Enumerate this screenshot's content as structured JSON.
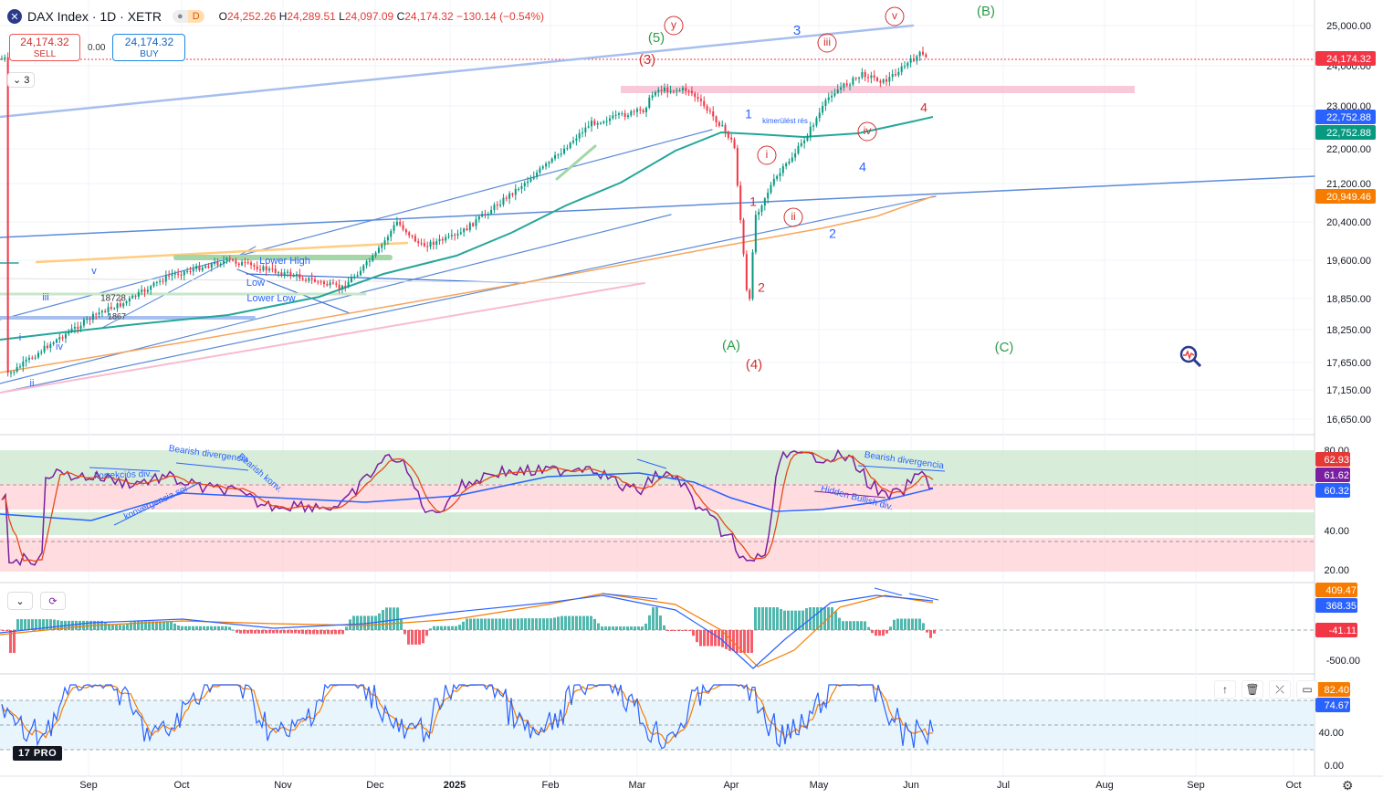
{
  "header": {
    "title": "DAX Index · 1D · XETR",
    "delay_badge": "D",
    "open_label": "O",
    "open": "24,252.26",
    "high_label": "H",
    "high": "24,289.51",
    "low_label": "L",
    "low": "24,097.09",
    "close_label": "C",
    "close": "24,174.32",
    "change": "−130.14 (−0.54%)"
  },
  "trade": {
    "sell_price": "24,174.32",
    "sell_label": "SELL",
    "spread": "0.00",
    "buy_price": "24,174.32",
    "buy_label": "BUY"
  },
  "indicator_count": "3",
  "icons": [
    "index-logo-icon",
    "chevron-down-icon",
    "refresh-icon",
    "arrow-up-icon",
    "trash-icon",
    "collapse-icon",
    "maximize-icon",
    "settings-icon",
    "magnifier-chart-icon"
  ],
  "colors": {
    "up": "#089981",
    "down": "#f23645",
    "ma_green": "#26a69a",
    "ma_orange": "#f7a55b",
    "trend_blue": "#5b8bd9",
    "rsi_purple": "#7b1fa2",
    "rsi_red": "#e64a19",
    "rsi_blue": "#2962ff"
  },
  "chart_data": [
    {
      "type": "line",
      "title": "DAX Index · 1D · XETR",
      "x_axis_labels": [
        "Sep",
        "Oct",
        "Nov",
        "Dec",
        "2025",
        "Feb",
        "Mar",
        "Apr",
        "May",
        "Jun",
        "Jul",
        "Aug",
        "Sep",
        "Oct"
      ],
      "y_tick_labels": [
        "25,000.00",
        "24,000.00",
        "23,000.00",
        "22,000.00",
        "21,200.00",
        "20,400.00",
        "19,600.00",
        "18,850.00",
        "18,250.00",
        "17,650.00",
        "17,150.00",
        "16,650.00"
      ],
      "y_ticks": [
        25000,
        24000,
        23000,
        22000,
        21200,
        20400,
        19600,
        18850,
        18250,
        17650,
        17150,
        16650
      ],
      "ylim": [
        16400,
        25500
      ],
      "price_key_points": [
        {
          "t": "Aug 6",
          "v": 17400
        },
        {
          "t": "Aug 20",
          "v": 18000
        },
        {
          "t": "Sep 5",
          "v": 18600
        },
        {
          "t": "Sep 12",
          "v": 18750
        },
        {
          "t": "Sep 27",
          "v": 19300
        },
        {
          "t": "Oct 15",
          "v": 19600
        },
        {
          "t": "Oct 25",
          "v": 19450
        },
        {
          "t": "Nov 5",
          "v": 19300
        },
        {
          "t": "Nov 20",
          "v": 19050
        },
        {
          "t": "Dec 1",
          "v": 19700
        },
        {
          "t": "Dec 10",
          "v": 20400
        },
        {
          "t": "Dec 20",
          "v": 19900
        },
        {
          "t": "Jan 3",
          "v": 20100
        },
        {
          "t": "Jan 20",
          "v": 21000
        },
        {
          "t": "Feb 1",
          "v": 21700
        },
        {
          "t": "Feb 14",
          "v": 22600
        },
        {
          "t": "Mar 3",
          "v": 22900
        },
        {
          "t": "Mar 7",
          "v": 23400
        },
        {
          "t": "Mar 18",
          "v": 23400
        },
        {
          "t": "Mar 28",
          "v": 22600
        },
        {
          "t": "Apr 2",
          "v": 22100
        },
        {
          "t": "Apr 7",
          "v": 18500
        },
        {
          "t": "Apr 9",
          "v": 20500
        },
        {
          "t": "Apr 15",
          "v": 21200
        },
        {
          "t": "Apr 25",
          "v": 22100
        },
        {
          "t": "May 5",
          "v": 23300
        },
        {
          "t": "May 16",
          "v": 23800
        },
        {
          "t": "May 23",
          "v": 23600
        },
        {
          "t": "Jun 4",
          "v": 24300
        },
        {
          "t": "Jun 6",
          "v": 24174.32
        }
      ],
      "price_labels": [
        {
          "text": "24,174.32",
          "color": "#f23645"
        },
        {
          "text": "22,752.88",
          "color": "#2962ff"
        },
        {
          "text": "22,752.88",
          "color": "#089981"
        },
        {
          "text": "20,949.46",
          "color": "#f57c00"
        }
      ],
      "annotations": [
        "(B)",
        "(5)",
        "y",
        "3",
        "v",
        "iii",
        "(3)",
        "1",
        "kimerülést rés",
        "i",
        "iv",
        "4",
        "1",
        "4",
        "ii",
        "2",
        "2",
        "(A)",
        "(4)",
        "(C)",
        "v",
        "iii",
        "18728",
        "1867",
        "iv",
        "i",
        "ii",
        "Lower High",
        "Low",
        "Lower Low"
      ]
    },
    {
      "type": "line",
      "title": "RSI",
      "y_tick_labels": [
        "80.00",
        "40.00",
        "20.00"
      ],
      "ylim": [
        15,
        85
      ],
      "value_labels": [
        {
          "text": "62.93",
          "color": "#e53935"
        },
        {
          "text": "61.62",
          "color": "#7b1fa2"
        },
        {
          "text": "60.32",
          "color": "#2962ff"
        }
      ],
      "annotations": [
        "korrekciós div.",
        "Bearish divergencia",
        "Bearish konv.",
        "konvergencia sor",
        "Bearish divergencia",
        "Hidden Bullish div."
      ]
    },
    {
      "type": "bar",
      "title": "MACD",
      "y_tick_labels": [
        "-500.00"
      ],
      "value_labels": [
        {
          "text": "409.47",
          "color": "#f57c00"
        },
        {
          "text": "368.35",
          "color": "#2962ff"
        },
        {
          "text": "-41.11",
          "color": "#f23645"
        }
      ]
    },
    {
      "type": "line",
      "title": "Stochastic",
      "y_tick_labels": [
        "40.00",
        "0.00"
      ],
      "ylim": [
        -10,
        100
      ],
      "value_labels": [
        {
          "text": "82.40",
          "color": "#f57c00"
        },
        {
          "text": "74.67",
          "color": "#2962ff"
        }
      ]
    }
  ],
  "footer_logo": "PRO"
}
